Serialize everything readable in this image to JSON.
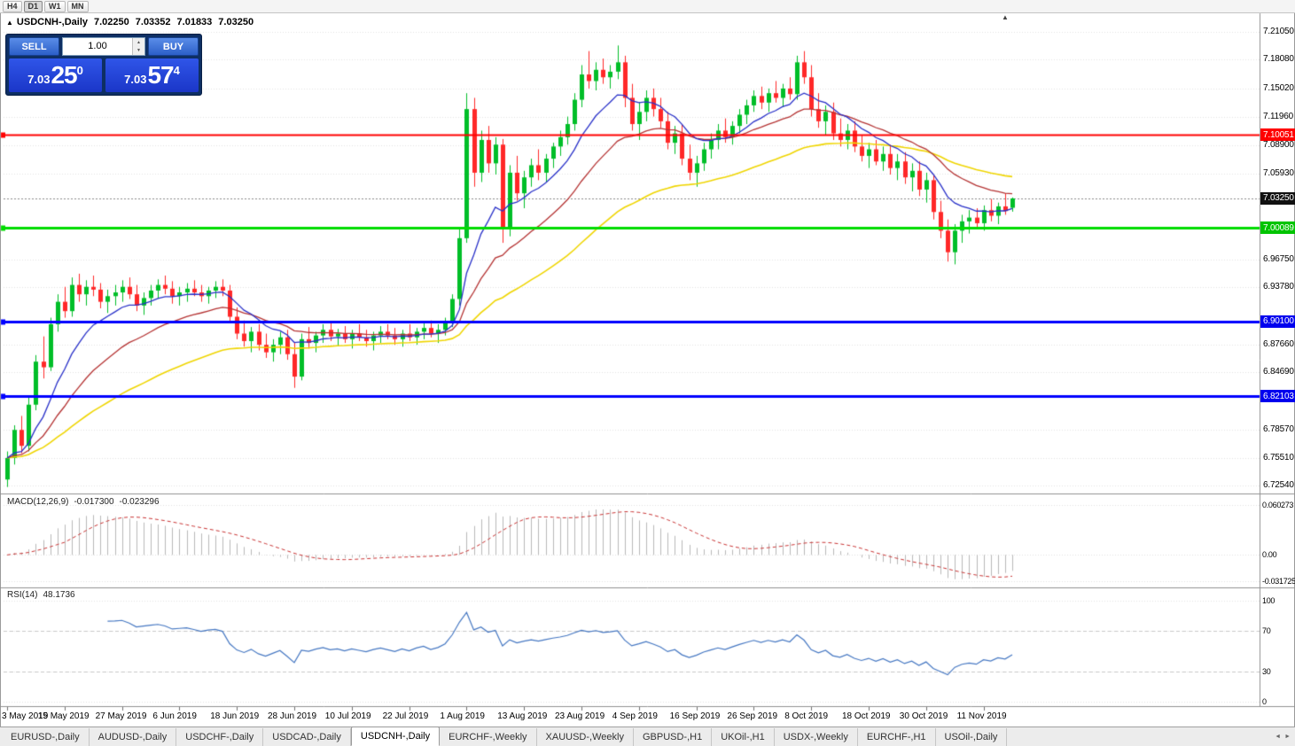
{
  "toolbar": {
    "timeframes": [
      {
        "label": "H4",
        "active": false
      },
      {
        "label": "D1",
        "active": true
      },
      {
        "label": "W1",
        "active": false
      },
      {
        "label": "MN",
        "active": false
      }
    ]
  },
  "chart_header": {
    "collapse_icon": "▲",
    "symbol": "USDCNH-,Daily",
    "open": "7.02250",
    "high": "7.03352",
    "low": "7.01833",
    "close": "7.03250",
    "scroll_marker": "▲"
  },
  "trade_panel": {
    "sell_label": "SELL",
    "buy_label": "BUY",
    "volume": "1.00",
    "volume_up_icon": "▲",
    "volume_down_icon": "▼",
    "sell_price_main": "7.03",
    "sell_price_big": "25",
    "sell_price_sup": "0",
    "buy_price_main": "7.03",
    "buy_price_big": "57",
    "buy_price_sup": "4"
  },
  "price_axis": {
    "ticks": [
      {
        "label": "7.21050",
        "price": 7.2105
      },
      {
        "label": "7.18080",
        "price": 7.1808
      },
      {
        "label": "7.15020",
        "price": 7.1502
      },
      {
        "label": "7.11960",
        "price": 7.1196
      },
      {
        "label": "7.08900",
        "price": 7.089
      },
      {
        "label": "7.05930",
        "price": 7.0593
      },
      {
        "label": "6.96750",
        "price": 6.9675
      },
      {
        "label": "6.93780",
        "price": 6.9378
      },
      {
        "label": "6.87660",
        "price": 6.8766
      },
      {
        "label": "6.84690",
        "price": 6.8469
      },
      {
        "label": "6.78570",
        "price": 6.7857
      },
      {
        "label": "6.75510",
        "price": 6.7551
      },
      {
        "label": "6.72540",
        "price": 6.7254
      }
    ],
    "badges": [
      {
        "label": "7.10051",
        "price": 7.10051,
        "color": "#FF0000"
      },
      {
        "label": "7.03250",
        "price": 7.0325,
        "color": "#111111"
      },
      {
        "label": "7.00089",
        "price": 7.00089,
        "color": "#00C400"
      },
      {
        "label": "6.90100",
        "price": 6.901,
        "color": "#0000EE"
      },
      {
        "label": "6.82103",
        "price": 6.82103,
        "color": "#0000EE"
      }
    ]
  },
  "indicator_macd": {
    "name": "MACD(12,26,9)",
    "value_main": "-0.017300",
    "value_signal": "-0.023296",
    "axis_labels": [
      {
        "label": "0.060273",
        "value": 0.060273
      },
      {
        "label": "0.00",
        "value": 0
      },
      {
        "label": "-0.0317255",
        "value": -0.0317255
      }
    ]
  },
  "indicator_rsi": {
    "name": "RSI(14)",
    "value": "48.1736",
    "axis_labels": [
      {
        "label": "100",
        "value": 100
      },
      {
        "label": "70",
        "value": 70
      },
      {
        "label": "30",
        "value": 30
      },
      {
        "label": "0",
        "value": 0
      }
    ]
  },
  "date_axis": {
    "labels": [
      {
        "label": "3 May 2019",
        "index": 0
      },
      {
        "label": "15 May 2019",
        "index": 8
      },
      {
        "label": "27 May 2019",
        "index": 16
      },
      {
        "label": "6 Jun 2019",
        "index": 24
      },
      {
        "label": "18 Jun 2019",
        "index": 32
      },
      {
        "label": "28 Jun 2019",
        "index": 40
      },
      {
        "label": "10 Jul 2019",
        "index": 48
      },
      {
        "label": "22 Jul 2019",
        "index": 56
      },
      {
        "label": "1 Aug 2019",
        "index": 64
      },
      {
        "label": "13 Aug 2019",
        "index": 72
      },
      {
        "label": "23 Aug 2019",
        "index": 80
      },
      {
        "label": "4 Sep 2019",
        "index": 88
      },
      {
        "label": "16 Sep 2019",
        "index": 96
      },
      {
        "label": "26 Sep 2019",
        "index": 104
      },
      {
        "label": "8 Oct 2019",
        "index": 112
      },
      {
        "label": "18 Oct 2019",
        "index": 120
      },
      {
        "label": "30 Oct 2019",
        "index": 128
      },
      {
        "label": "11 Nov 2019",
        "index": 136
      }
    ]
  },
  "tab_bar": {
    "tabs": [
      {
        "label": "EURUSD-,Daily",
        "active": false
      },
      {
        "label": "AUDUSD-,Daily",
        "active": false
      },
      {
        "label": "USDCHF-,Daily",
        "active": false
      },
      {
        "label": "USDCAD-,Daily",
        "active": false
      },
      {
        "label": "USDCNH-,Daily",
        "active": true
      },
      {
        "label": "EURCHF-,Weekly",
        "active": false
      },
      {
        "label": "XAUUSD-,Weekly",
        "active": false
      },
      {
        "label": "GBPUSD-,H1",
        "active": false
      },
      {
        "label": "UKOil-,H1",
        "active": false
      },
      {
        "label": "USDX-,Weekly",
        "active": false
      },
      {
        "label": "EURCHF-,H1",
        "active": false
      },
      {
        "label": "USOil-,Daily",
        "active": false
      }
    ],
    "scroll_left_icon": "◄",
    "scroll_right_icon": "►"
  },
  "chart_data": {
    "type": "candlestick",
    "symbol": "USDCNH",
    "timeframe": "Daily",
    "visible_range": {
      "price_top": 7.22,
      "price_bottom": 6.718
    },
    "last_price": 7.0325,
    "colors": {
      "candle_up": "#00BE28",
      "candle_down": "#FF2828",
      "macd_histogram": "#B8B8B8",
      "macd_signal": "#C83232",
      "rsi_line": "#4577C2"
    },
    "moving_averages": [
      {
        "period": 10,
        "type": "ema",
        "color": "#2830C8"
      },
      {
        "period": 22,
        "type": "ema",
        "color": "#B43232"
      },
      {
        "period": 50,
        "type": "ema",
        "color": "#EFD500"
      }
    ],
    "hlines": [
      {
        "price": 7.10051,
        "color": "#FF0000",
        "width": 2
      },
      {
        "price": 7.00089,
        "color": "#00DC00",
        "width": 3
      },
      {
        "price": 6.901,
        "color": "#0000FF",
        "width": 3
      },
      {
        "price": 6.82103,
        "color": "#0000FF",
        "width": 3
      }
    ],
    "macd": {
      "fast": 12,
      "slow": 26,
      "signal": 9
    },
    "rsi": {
      "period": 14,
      "levels": [
        70,
        30
      ]
    },
    "candles": [
      [
        6.732,
        6.762,
        6.724,
        6.755
      ],
      [
        6.755,
        6.79,
        6.748,
        6.785
      ],
      [
        6.785,
        6.8,
        6.76,
        6.768
      ],
      [
        6.768,
        6.82,
        6.762,
        6.812
      ],
      [
        6.812,
        6.865,
        6.806,
        6.858
      ],
      [
        6.858,
        6.885,
        6.84,
        6.852
      ],
      [
        6.852,
        6.905,
        6.848,
        6.898
      ],
      [
        6.898,
        6.93,
        6.89,
        6.922
      ],
      [
        6.922,
        6.938,
        6.905,
        6.912
      ],
      [
        6.912,
        6.948,
        6.906,
        6.94
      ],
      [
        6.94,
        6.952,
        6.922,
        6.93
      ],
      [
        6.93,
        6.945,
        6.918,
        6.938
      ],
      [
        6.938,
        6.95,
        6.928,
        6.935
      ],
      [
        6.935,
        6.942,
        6.915,
        6.922
      ],
      [
        6.922,
        6.935,
        6.91,
        6.928
      ],
      [
        6.928,
        6.94,
        6.918,
        6.932
      ],
      [
        6.932,
        6.945,
        6.922,
        6.938
      ],
      [
        6.938,
        6.948,
        6.925,
        6.93
      ],
      [
        6.93,
        6.94,
        6.912,
        6.918
      ],
      [
        6.918,
        6.932,
        6.908,
        6.926
      ],
      [
        6.926,
        6.94,
        6.918,
        6.934
      ],
      [
        6.934,
        6.946,
        6.926,
        6.94
      ],
      [
        6.94,
        6.95,
        6.93,
        6.936
      ],
      [
        6.936,
        6.944,
        6.92,
        6.928
      ],
      [
        6.928,
        6.938,
        6.918,
        6.932
      ],
      [
        6.932,
        6.942,
        6.922,
        6.936
      ],
      [
        6.936,
        6.945,
        6.928,
        6.932
      ],
      [
        6.932,
        6.94,
        6.922,
        6.928
      ],
      [
        6.928,
        6.938,
        6.92,
        6.934
      ],
      [
        6.934,
        6.944,
        6.926,
        6.938
      ],
      [
        6.938,
        6.946,
        6.928,
        6.934
      ],
      [
        6.934,
        6.94,
        6.9,
        6.906
      ],
      [
        6.906,
        6.916,
        6.882,
        6.888
      ],
      [
        6.888,
        6.902,
        6.874,
        6.88
      ],
      [
        6.88,
        6.895,
        6.868,
        6.89
      ],
      [
        6.89,
        6.898,
        6.87,
        6.876
      ],
      [
        6.876,
        6.888,
        6.862,
        6.868
      ],
      [
        6.868,
        6.882,
        6.858,
        6.876
      ],
      [
        6.876,
        6.89,
        6.866,
        6.884
      ],
      [
        6.884,
        6.892,
        6.86,
        6.866
      ],
      [
        6.866,
        6.878,
        6.83,
        6.842
      ],
      [
        6.842,
        6.888,
        6.838,
        6.882
      ],
      [
        6.882,
        6.895,
        6.872,
        6.878
      ],
      [
        6.878,
        6.89,
        6.868,
        6.886
      ],
      [
        6.886,
        6.898,
        6.878,
        6.892
      ],
      [
        6.892,
        6.9,
        6.88,
        6.885
      ],
      [
        6.885,
        6.893,
        6.875,
        6.888
      ],
      [
        6.888,
        6.896,
        6.878,
        6.882
      ],
      [
        6.882,
        6.892,
        6.872,
        6.888
      ],
      [
        6.888,
        6.898,
        6.88,
        6.884
      ],
      [
        6.884,
        6.892,
        6.874,
        6.88
      ],
      [
        6.88,
        6.89,
        6.87,
        6.886
      ],
      [
        6.886,
        6.896,
        6.878,
        6.89
      ],
      [
        6.89,
        6.898,
        6.882,
        6.886
      ],
      [
        6.886,
        6.894,
        6.876,
        6.882
      ],
      [
        6.882,
        6.892,
        6.874,
        6.888
      ],
      [
        6.888,
        6.898,
        6.88,
        6.884
      ],
      [
        6.884,
        6.894,
        6.876,
        6.89
      ],
      [
        6.89,
        6.9,
        6.882,
        6.894
      ],
      [
        6.894,
        6.902,
        6.884,
        6.888
      ],
      [
        6.888,
        6.898,
        6.878,
        6.892
      ],
      [
        6.892,
        6.905,
        6.886,
        6.9
      ],
      [
        6.9,
        6.93,
        6.895,
        6.925
      ],
      [
        6.925,
        7.0,
        6.918,
        6.99
      ],
      [
        6.99,
        7.145,
        6.985,
        7.128
      ],
      [
        7.128,
        7.14,
        7.045,
        7.06
      ],
      [
        7.06,
        7.105,
        7.05,
        7.095
      ],
      [
        7.095,
        7.11,
        7.06,
        7.07
      ],
      [
        7.07,
        7.098,
        7.058,
        7.09
      ],
      [
        7.09,
        7.096,
        6.985,
        7.0
      ],
      [
        7.0,
        7.068,
        6.992,
        7.06
      ],
      [
        7.06,
        7.078,
        7.03,
        7.038
      ],
      [
        7.038,
        7.062,
        7.022,
        7.055
      ],
      [
        7.055,
        7.075,
        7.045,
        7.068
      ],
      [
        7.068,
        7.085,
        7.052,
        7.06
      ],
      [
        7.06,
        7.08,
        7.05,
        7.075
      ],
      [
        7.075,
        7.092,
        7.065,
        7.088
      ],
      [
        7.088,
        7.105,
        7.078,
        7.098
      ],
      [
        7.098,
        7.12,
        7.09,
        7.112
      ],
      [
        7.112,
        7.145,
        7.105,
        7.138
      ],
      [
        7.138,
        7.175,
        7.13,
        7.165
      ],
      [
        7.165,
        7.19,
        7.15,
        7.158
      ],
      [
        7.158,
        7.178,
        7.148,
        7.17
      ],
      [
        7.17,
        7.182,
        7.155,
        7.162
      ],
      [
        7.162,
        7.175,
        7.15,
        7.168
      ],
      [
        7.168,
        7.196,
        7.16,
        7.178
      ],
      [
        7.178,
        7.185,
        7.13,
        7.14
      ],
      [
        7.14,
        7.155,
        7.105,
        7.112
      ],
      [
        7.112,
        7.135,
        7.095,
        7.125
      ],
      [
        7.125,
        7.148,
        7.115,
        7.14
      ],
      [
        7.14,
        7.15,
        7.12,
        7.128
      ],
      [
        7.128,
        7.14,
        7.108,
        7.115
      ],
      [
        7.115,
        7.125,
        7.085,
        7.092
      ],
      [
        7.092,
        7.11,
        7.08,
        7.102
      ],
      [
        7.102,
        7.112,
        7.068,
        7.075
      ],
      [
        7.075,
        7.09,
        7.052,
        7.06
      ],
      [
        7.06,
        7.078,
        7.045,
        7.07
      ],
      [
        7.07,
        7.092,
        7.062,
        7.085
      ],
      [
        7.085,
        7.102,
        7.075,
        7.095
      ],
      [
        7.095,
        7.112,
        7.085,
        7.105
      ],
      [
        7.105,
        7.118,
        7.092,
        7.098
      ],
      [
        7.098,
        7.115,
        7.09,
        7.11
      ],
      [
        7.11,
        7.128,
        7.102,
        7.122
      ],
      [
        7.122,
        7.138,
        7.112,
        7.132
      ],
      [
        7.132,
        7.148,
        7.125,
        7.142
      ],
      [
        7.142,
        7.152,
        7.128,
        7.135
      ],
      [
        7.135,
        7.15,
        7.125,
        7.145
      ],
      [
        7.145,
        7.158,
        7.135,
        7.14
      ],
      [
        7.14,
        7.155,
        7.13,
        7.15
      ],
      [
        7.15,
        7.162,
        7.138,
        7.144
      ],
      [
        7.144,
        7.185,
        7.138,
        7.178
      ],
      [
        7.178,
        7.19,
        7.155,
        7.162
      ],
      [
        7.162,
        7.175,
        7.12,
        7.128
      ],
      [
        7.128,
        7.145,
        7.108,
        7.115
      ],
      [
        7.115,
        7.132,
        7.1,
        7.125
      ],
      [
        7.125,
        7.135,
        7.095,
        7.102
      ],
      [
        7.102,
        7.118,
        7.088,
        7.095
      ],
      [
        7.095,
        7.112,
        7.085,
        7.105
      ],
      [
        7.105,
        7.115,
        7.082,
        7.088
      ],
      [
        7.088,
        7.1,
        7.072,
        7.078
      ],
      [
        7.078,
        7.092,
        7.065,
        7.085
      ],
      [
        7.085,
        7.095,
        7.068,
        7.072
      ],
      [
        7.072,
        7.088,
        7.062,
        7.08
      ],
      [
        7.08,
        7.09,
        7.058,
        7.065
      ],
      [
        7.065,
        7.08,
        7.052,
        7.072
      ],
      [
        7.072,
        7.082,
        7.048,
        7.055
      ],
      [
        7.055,
        7.07,
        7.04,
        7.062
      ],
      [
        7.062,
        7.072,
        7.035,
        7.042
      ],
      [
        7.042,
        7.06,
        7.028,
        7.052
      ],
      [
        7.052,
        7.058,
        7.01,
        7.018
      ],
      [
        7.018,
        7.03,
        6.99,
        6.998
      ],
      [
        6.998,
        7.01,
        6.965,
        6.975
      ],
      [
        6.975,
        7.005,
        6.962,
        6.998
      ],
      [
        6.998,
        7.015,
        6.985,
        7.008
      ],
      [
        7.008,
        7.02,
        6.995,
        7.012
      ],
      [
        7.012,
        7.022,
        7.0,
        7.006
      ],
      [
        7.006,
        7.025,
        6.998,
        7.02
      ],
      [
        7.02,
        7.032,
        7.008,
        7.014
      ],
      [
        7.014,
        7.028,
        7.005,
        7.024
      ],
      [
        7.024,
        7.038,
        7.015,
        7.019
      ],
      [
        7.0225,
        7.0335,
        7.0183,
        7.0325
      ]
    ]
  }
}
